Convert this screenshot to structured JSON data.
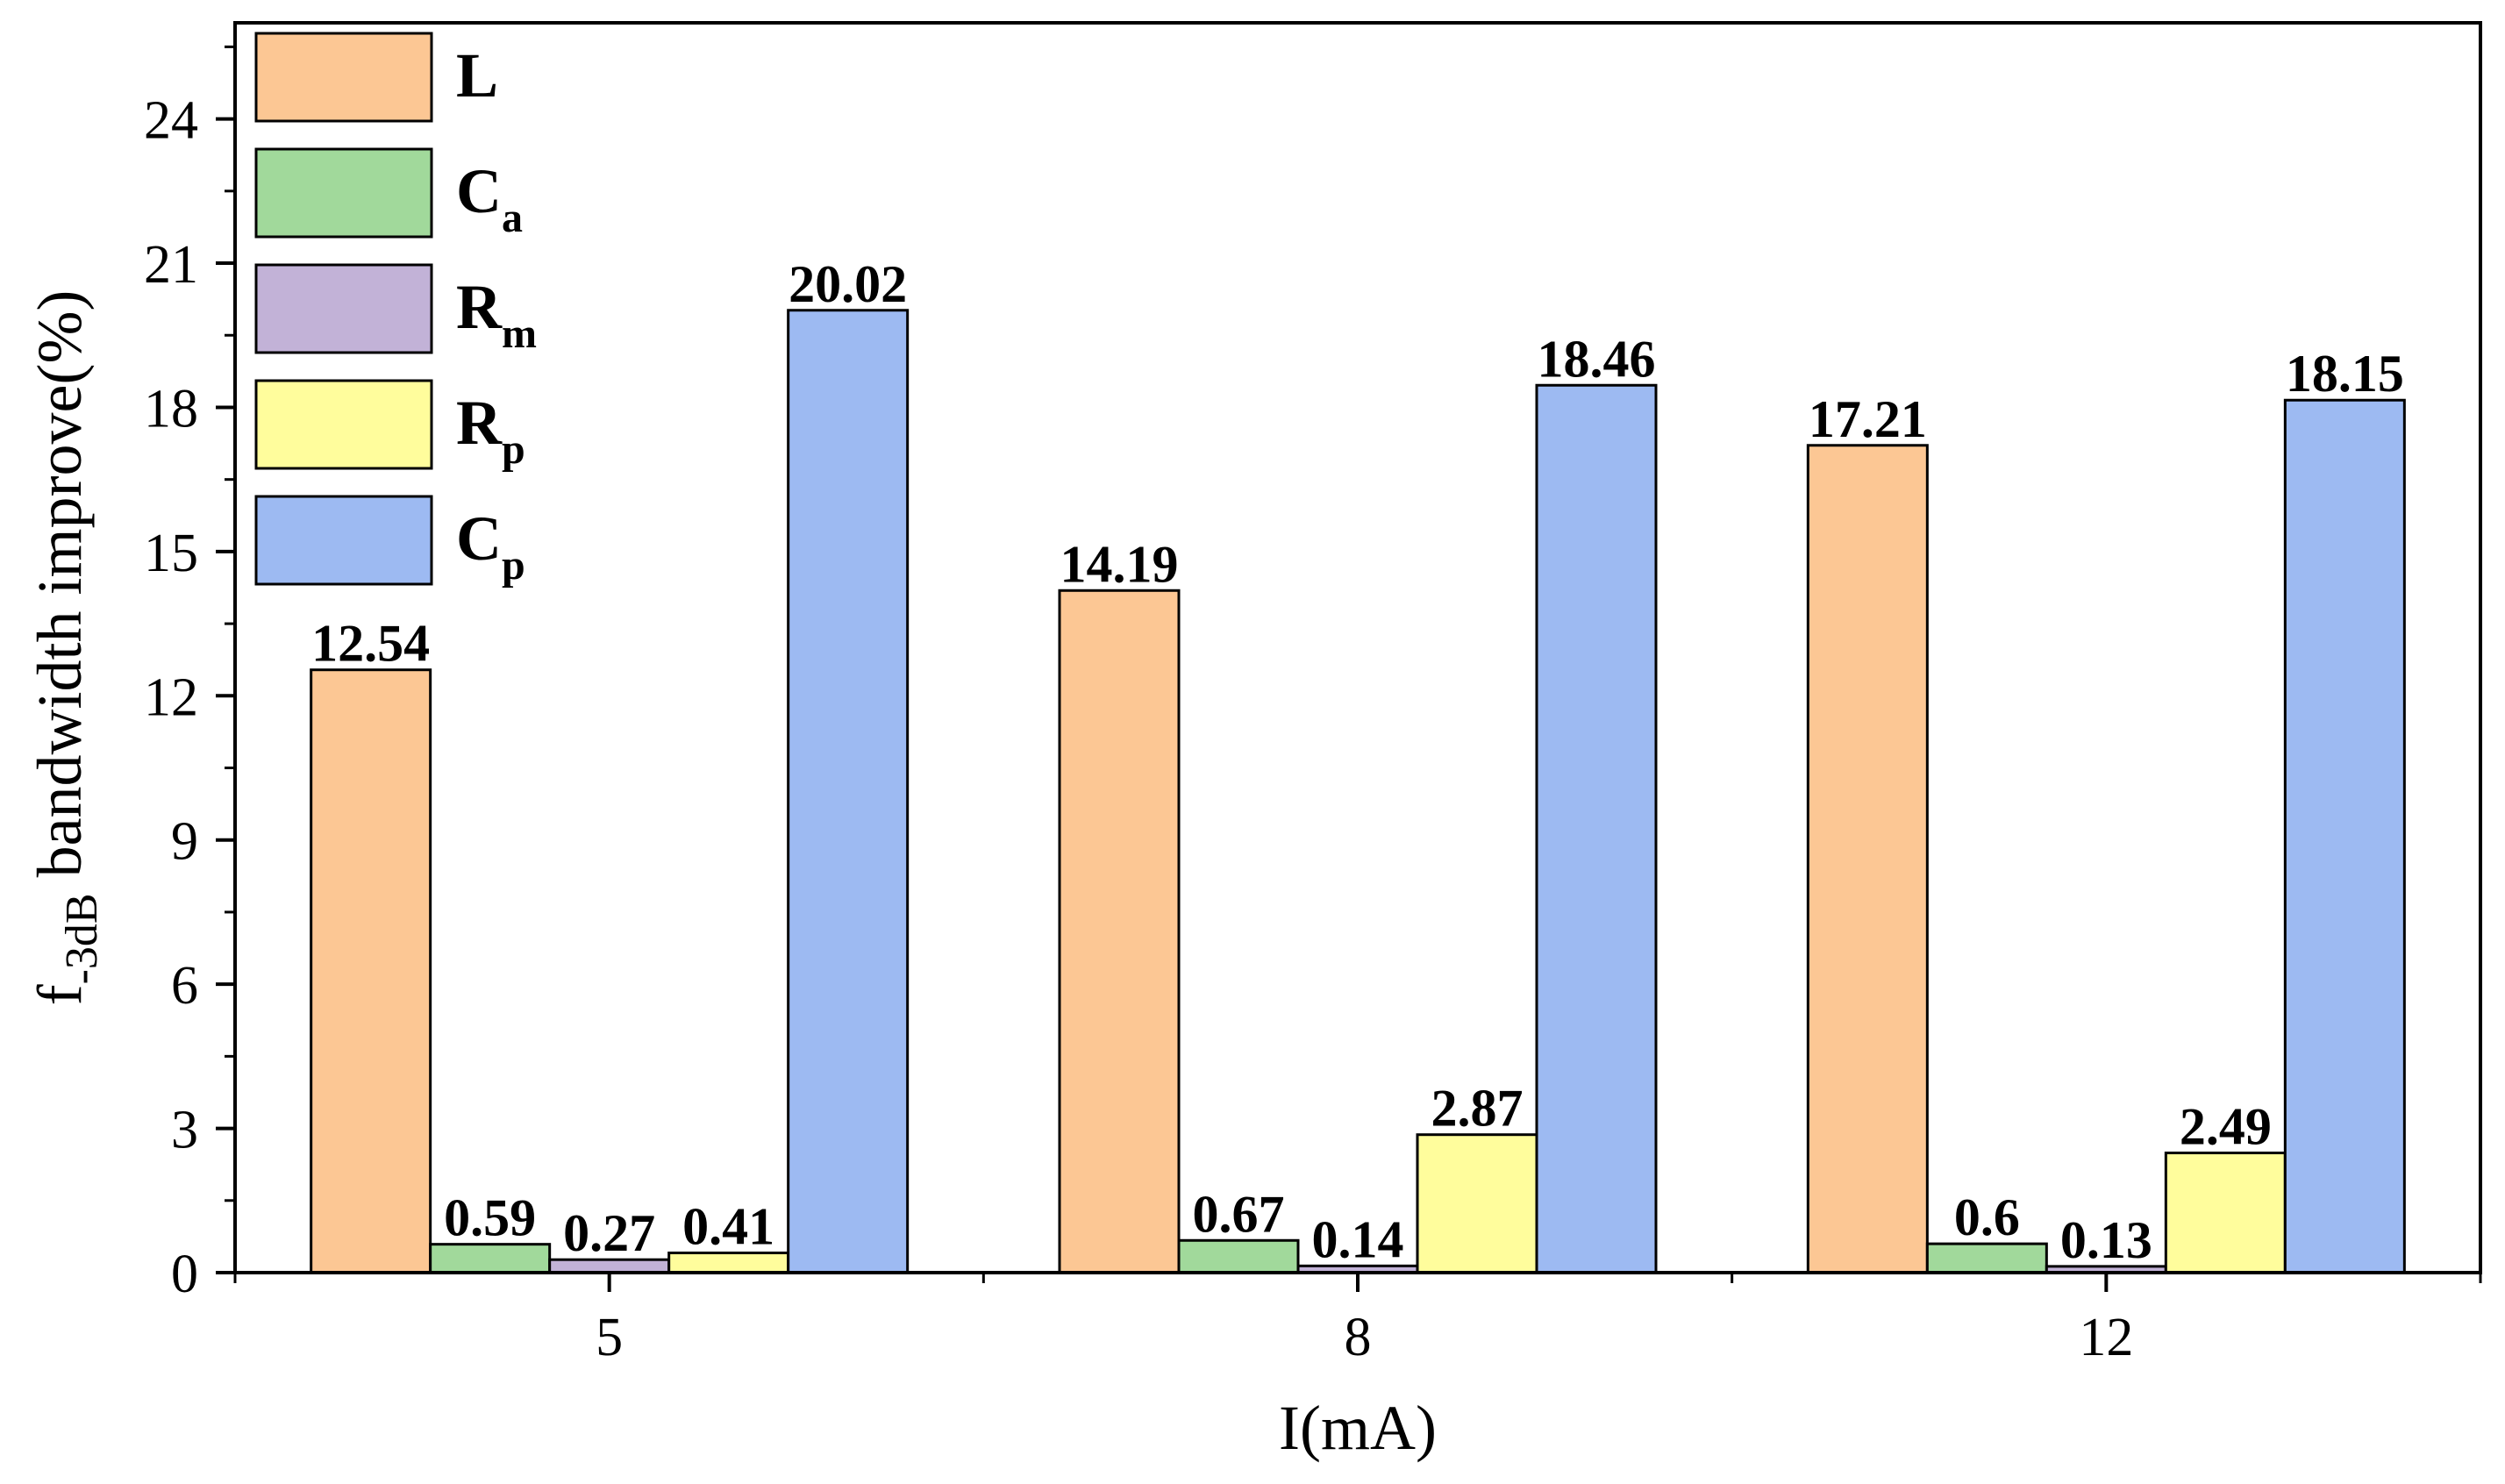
{
  "chart_data": {
    "type": "bar",
    "title": "",
    "xlabel": "I(mA)",
    "ylabel": "f-3dB bandwidth improve(%)",
    "ylabel_main": "f",
    "ylabel_sub": "-3dB",
    "ylabel_rest": " bandwidth improve(%)",
    "categories": [
      "5",
      "8",
      "12"
    ],
    "ylim": [
      0,
      26
    ],
    "yticks": [
      0,
      3,
      6,
      9,
      12,
      15,
      18,
      21,
      24
    ],
    "grid": false,
    "legend_position": "top-left",
    "series": [
      {
        "name": "L",
        "label_main": "L",
        "label_sub": "",
        "color": "#FCC794",
        "values": [
          12.54,
          14.19,
          17.21
        ],
        "labels": [
          "12.54",
          "14.19",
          "17.21"
        ]
      },
      {
        "name": "Ca",
        "label_main": "C",
        "label_sub": "a",
        "color": "#A1D99B",
        "values": [
          0.59,
          0.67,
          0.6
        ],
        "labels": [
          "0.59",
          "0.67",
          "0.6"
        ]
      },
      {
        "name": "Rm",
        "label_main": "R",
        "label_sub": "m",
        "color": "#C2B2D7",
        "values": [
          0.27,
          0.14,
          0.13
        ],
        "labels": [
          "0.27",
          "0.14",
          "0.13"
        ]
      },
      {
        "name": "Rp",
        "label_main": "R",
        "label_sub": "p",
        "color": "#FFFD9C",
        "values": [
          0.41,
          2.87,
          2.49
        ],
        "labels": [
          "0.41",
          "2.87",
          "2.49"
        ]
      },
      {
        "name": "Cp",
        "label_main": "C",
        "label_sub": "p",
        "color": "#9DBAF2",
        "values": [
          20.02,
          18.46,
          18.15
        ],
        "labels": [
          "20.02",
          "18.46",
          "18.15"
        ]
      }
    ]
  }
}
